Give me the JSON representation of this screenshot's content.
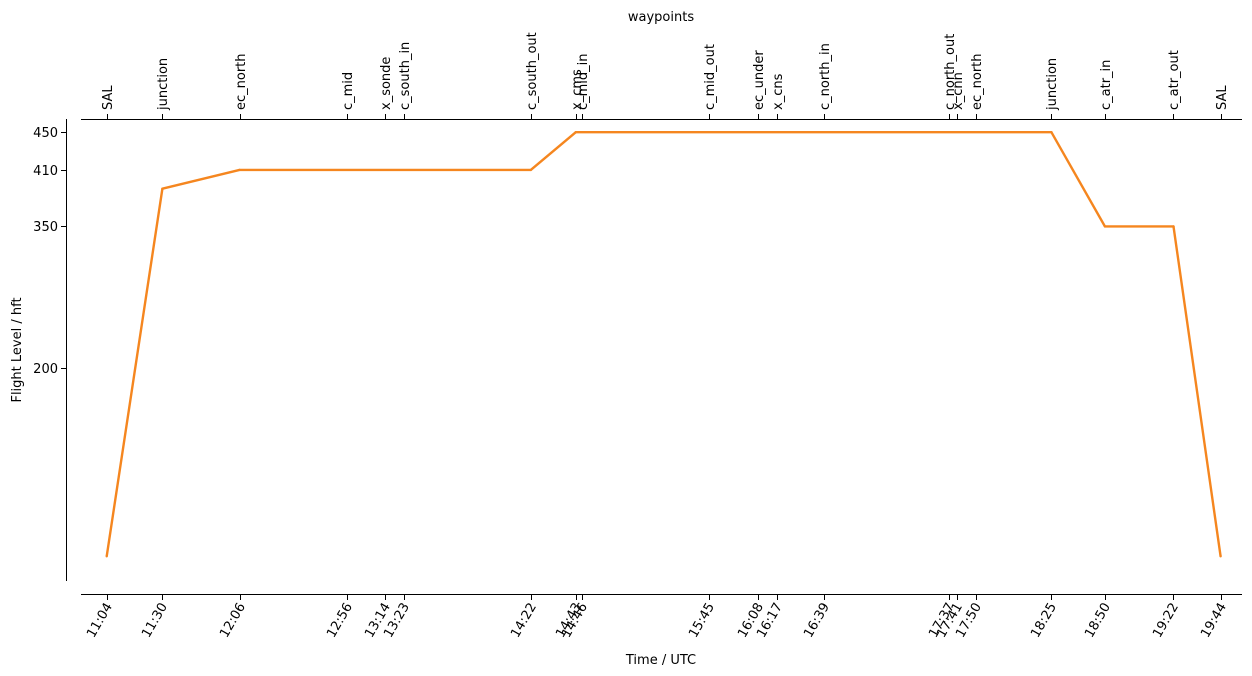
{
  "chart_data": {
    "type": "line",
    "title": "waypoints",
    "xlabel": "Time / UTC",
    "ylabel": "Flight Level / hft",
    "line_color": "#f5861f",
    "ylim": [
      -40,
      464
    ],
    "yticks": [
      200,
      350,
      410,
      450
    ],
    "xlim_minutes": [
      652,
      1194
    ],
    "points": [
      {
        "time": "11:04",
        "minutes": 664,
        "fl": 0
      },
      {
        "time": "11:30",
        "minutes": 690,
        "fl": 390
      },
      {
        "time": "12:06",
        "minutes": 726,
        "fl": 410
      },
      {
        "time": "14:22",
        "minutes": 862,
        "fl": 410
      },
      {
        "time": "14:43",
        "minutes": 883,
        "fl": 450
      },
      {
        "time": "18:25",
        "minutes": 1105,
        "fl": 450
      },
      {
        "time": "18:50",
        "minutes": 1130,
        "fl": 350
      },
      {
        "time": "19:22",
        "minutes": 1162,
        "fl": 350
      },
      {
        "time": "19:44",
        "minutes": 1184,
        "fl": 0
      }
    ],
    "waypoints": [
      {
        "name": "SAL",
        "time": "11:04",
        "minutes": 664
      },
      {
        "name": "junction",
        "time": "11:30",
        "minutes": 690
      },
      {
        "name": "ec_north",
        "time": "12:06",
        "minutes": 726
      },
      {
        "name": "c_mid",
        "time": "12:56",
        "minutes": 776
      },
      {
        "name": "x_sonde",
        "time": "13:14",
        "minutes": 794
      },
      {
        "name": "c_south_in",
        "time": "13:23",
        "minutes": 803
      },
      {
        "name": "c_south_out",
        "time": "14:22",
        "minutes": 862
      },
      {
        "name": "x_cms",
        "time": "14:43",
        "minutes": 883
      },
      {
        "name": "c_mid_in",
        "time": "14:46",
        "minutes": 886
      },
      {
        "name": "c_mid_out",
        "time": "15:45",
        "minutes": 945
      },
      {
        "name": "ec_under",
        "time": "16:08",
        "minutes": 968
      },
      {
        "name": "x_cns",
        "time": "16:17",
        "minutes": 977
      },
      {
        "name": "c_north_in",
        "time": "16:39",
        "minutes": 999
      },
      {
        "name": "c_north_out",
        "time": "17:37",
        "minutes": 1057
      },
      {
        "name": "x_cnn",
        "time": "17:41",
        "minutes": 1061
      },
      {
        "name": "ec_north",
        "time": "17:50",
        "minutes": 1070
      },
      {
        "name": "junction",
        "time": "18:25",
        "minutes": 1105
      },
      {
        "name": "c_atr_in",
        "time": "18:50",
        "minutes": 1130
      },
      {
        "name": "c_atr_out",
        "time": "19:22",
        "minutes": 1162
      },
      {
        "name": "SAL",
        "time": "19:44",
        "minutes": 1184
      }
    ]
  }
}
